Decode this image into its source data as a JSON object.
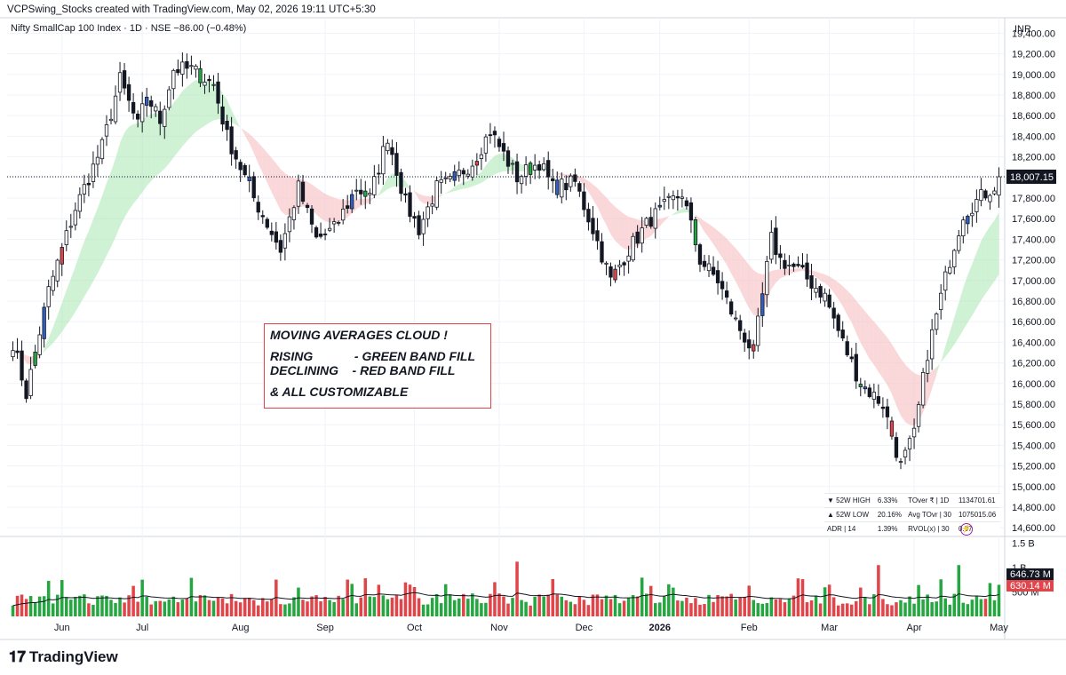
{
  "header": {
    "credit": "VCPSwing_Stocks created with TradingView.com, May 02, 2026 19:11 UTC+5:30",
    "symbol_line": "Nifty SmallCap 100 Index · 1D · NSE  −86.00 (−0.48%)",
    "currency": "INR"
  },
  "annotation": {
    "line1": "MOVING AVERAGES CLOUD !",
    "line2": "RISING            - GREEN BAND FILL",
    "line3": "DECLINING    - RED BAND FILL",
    "line4": "& ALL CUSTOMIZABLE"
  },
  "stats": {
    "rows": [
      [
        "▼ 52W HIGH",
        "6.33%",
        "TOver ₹ | 1D",
        "1134701.61"
      ],
      [
        "▲ 52W LOW",
        "20.16%",
        "Avg TOvr | 30",
        "1075015.06"
      ],
      [
        "ADR | 14",
        "1.39%",
        "RVOL(x) | 30",
        "0.97"
      ]
    ]
  },
  "logo": "TradingView",
  "chart_data": {
    "type": "candlestick",
    "price_axis": {
      "min": 14550,
      "max": 19550,
      "ticks": [
        "19,400.00",
        "19,200.00",
        "19,000.00",
        "18,800.00",
        "18,600.00",
        "18,400.00",
        "18,200.00",
        "18,000.00",
        "17,800.00",
        "17,600.00",
        "17,400.00",
        "17,200.00",
        "17,000.00",
        "16,800.00",
        "16,600.00",
        "16,400.00",
        "16,200.00",
        "16,000.00",
        "15,800.00",
        "15,600.00",
        "15,400.00",
        "15,200.00",
        "15,000.00",
        "14,800.00",
        "14,600.00"
      ],
      "tick_values": [
        19400,
        19200,
        19000,
        18800,
        18600,
        18400,
        18200,
        18000,
        17800,
        17600,
        17400,
        17200,
        17000,
        16800,
        16600,
        16400,
        16200,
        16000,
        15800,
        15600,
        15400,
        15200,
        15000,
        14800,
        14600
      ],
      "last_price_label": "18,007.15",
      "last_price": 18007.15
    },
    "volume_axis": {
      "labels": [
        "1.5 B",
        "1 B",
        "500 M"
      ],
      "label_values": [
        1.5,
        1.0,
        0.5
      ],
      "max": 1.6,
      "volume_label": "646.73 M",
      "volume_value": 0.64673,
      "ma_label": "630.14 M",
      "ma_value": 0.63014
    },
    "x_labels": [
      "Jun",
      "Jul",
      "Aug",
      "Sep",
      "Oct",
      "Nov",
      "Dec",
      "2026",
      "Feb",
      "Mar",
      "Apr",
      "May"
    ],
    "x_label_bar_index": [
      11,
      29,
      51,
      70,
      90,
      109,
      128,
      145,
      165,
      183,
      202,
      221
    ],
    "bar_count": 222,
    "anchors": [
      [
        0,
        16400
      ],
      [
        3,
        15900
      ],
      [
        8,
        16900
      ],
      [
        14,
        17700
      ],
      [
        20,
        18300
      ],
      [
        24,
        18950
      ],
      [
        28,
        18500
      ],
      [
        30,
        18800
      ],
      [
        33,
        18550
      ],
      [
        36,
        19050
      ],
      [
        40,
        19050
      ],
      [
        45,
        18900
      ],
      [
        48,
        18400
      ],
      [
        54,
        17800
      ],
      [
        60,
        17300
      ],
      [
        64,
        17900
      ],
      [
        68,
        17400
      ],
      [
        72,
        17500
      ],
      [
        77,
        17900
      ],
      [
        80,
        17800
      ],
      [
        84,
        18400
      ],
      [
        88,
        17750
      ],
      [
        91,
        17500
      ],
      [
        95,
        17900
      ],
      [
        98,
        17950
      ],
      [
        103,
        18150
      ],
      [
        107,
        18450
      ],
      [
        113,
        18000
      ],
      [
        118,
        18150
      ],
      [
        121,
        17900
      ],
      [
        126,
        17950
      ],
      [
        130,
        17500
      ],
      [
        134,
        17000
      ],
      [
        138,
        17300
      ],
      [
        143,
        17600
      ],
      [
        150,
        17850
      ],
      [
        154,
        17200
      ],
      [
        158,
        17000
      ],
      [
        162,
        16600
      ],
      [
        166,
        16300
      ],
      [
        170,
        17400
      ],
      [
        172,
        17200
      ],
      [
        176,
        17100
      ],
      [
        182,
        16850
      ],
      [
        186,
        16400
      ],
      [
        190,
        16000
      ],
      [
        195,
        15800
      ],
      [
        199,
        15200
      ],
      [
        202,
        15500
      ],
      [
        205,
        16300
      ],
      [
        210,
        17200
      ],
      [
        213,
        17650
      ],
      [
        218,
        17850
      ],
      [
        221,
        17950
      ]
    ],
    "colors": {
      "up": "#ffffff",
      "down": "#131722",
      "up_vol": "#26a641",
      "down_vol": "#e0454a",
      "cloud_up": "#a8e6b0",
      "cloud_down": "#f6b8bc",
      "blue_candle": "#2f5fbf",
      "red_candle": "#e0454a",
      "green_candle": "#26a641"
    }
  }
}
